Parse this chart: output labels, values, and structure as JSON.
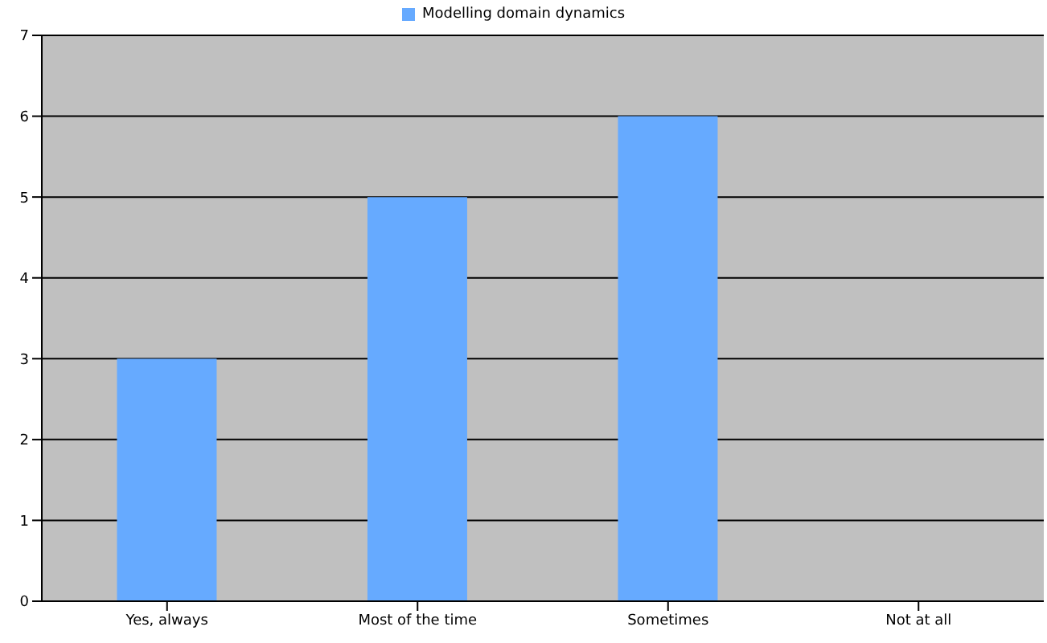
{
  "chart_data": {
    "type": "bar",
    "categories": [
      "Yes, always",
      "Most of the time",
      "Sometimes",
      "Not at all"
    ],
    "series": [
      {
        "name": "Modelling domain dynamics",
        "color": "#66aaff",
        "values": [
          3,
          5,
          6,
          0
        ]
      }
    ],
    "ylim": [
      0,
      7
    ],
    "yticks": [
      0,
      1,
      2,
      3,
      4,
      5,
      6,
      7
    ],
    "grid": "y",
    "legend": "top"
  }
}
